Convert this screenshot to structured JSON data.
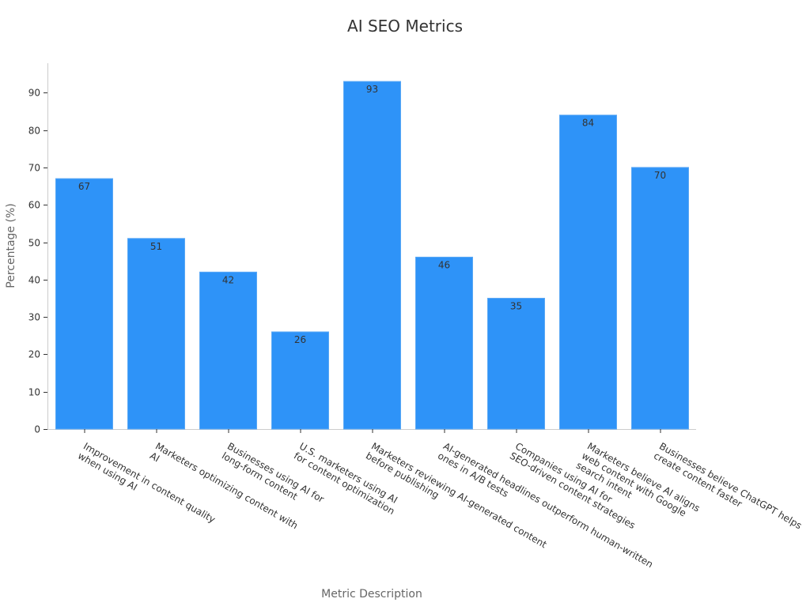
{
  "chart_data": {
    "type": "bar",
    "title": "AI SEO Metrics",
    "xlabel": "Metric Description",
    "ylabel": "Percentage (%)",
    "ylim": [
      0,
      98
    ],
    "yticks": [
      0,
      10,
      20,
      30,
      40,
      50,
      60,
      70,
      80,
      90
    ],
    "grid": false,
    "bar_color": "#2e93f8",
    "categories": [
      [
        "Improvement in content quality",
        "when using AI"
      ],
      [
        "Marketers optimizing content with",
        "AI"
      ],
      [
        "Businesses using AI for",
        "long-form content"
      ],
      [
        "U.S. marketers using AI",
        "for content optimization"
      ],
      [
        "Marketers reviewing AI-generated content",
        "before publishing"
      ],
      [
        "AI-generated headlines outperform human-written",
        "ones in A/B tests"
      ],
      [
        "Companies using AI for",
        "SEO-driven content strategies"
      ],
      [
        "Marketers believe AI aligns",
        "web content with Google",
        "search intent"
      ],
      [
        "Businesses believe ChatGPT helps",
        "create content faster"
      ]
    ],
    "values": [
      67,
      51,
      42,
      26,
      93,
      46,
      35,
      84,
      70
    ]
  }
}
